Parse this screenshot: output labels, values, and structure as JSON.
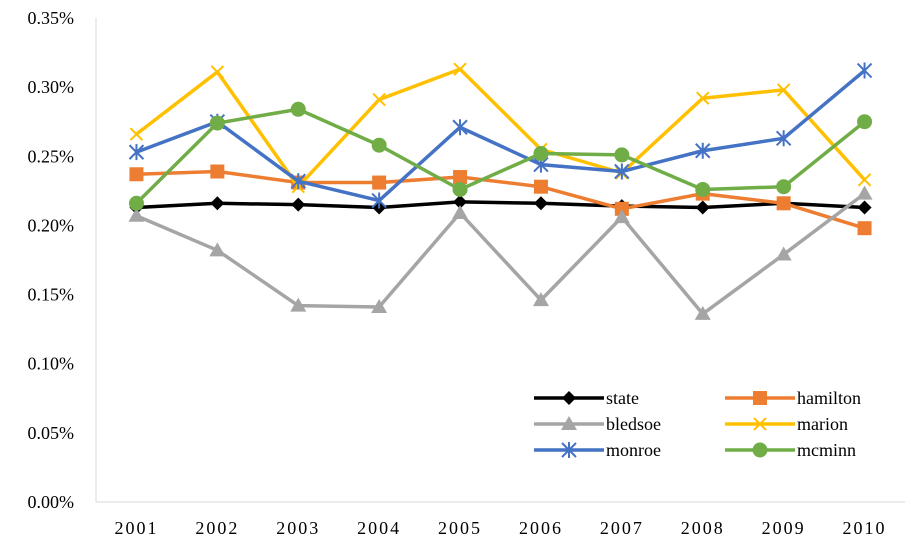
{
  "chart_data": {
    "type": "line",
    "title": "",
    "xlabel": "",
    "ylabel": "",
    "categories": [
      "2001",
      "2002",
      "2003",
      "2004",
      "2005",
      "2006",
      "2007",
      "2008",
      "2009",
      "2010"
    ],
    "ylim": [
      0,
      0.35
    ],
    "y_tick_values": [
      0,
      0.05,
      0.1,
      0.15,
      0.2,
      0.25,
      0.3,
      0.35
    ],
    "y_tick_labels": [
      "0.00%",
      "0.05%",
      "0.10%",
      "0.15%",
      "0.20%",
      "0.25%",
      "0.30%",
      "0.35%"
    ],
    "grid": false,
    "legend_position": "bottom-right",
    "series": [
      {
        "name": "state",
        "color": "#000000",
        "marker": "diamond",
        "values": [
          0.213,
          0.216,
          0.215,
          0.213,
          0.217,
          0.216,
          0.214,
          0.213,
          0.216,
          0.213
        ]
      },
      {
        "name": "hamilton",
        "color": "#ED7D31",
        "marker": "square",
        "values": [
          0.237,
          0.239,
          0.231,
          0.231,
          0.235,
          0.228,
          0.212,
          0.223,
          0.216,
          0.198
        ]
      },
      {
        "name": "bledsoe",
        "color": "#A5A5A5",
        "marker": "triangle",
        "values": [
          0.207,
          0.182,
          0.142,
          0.141,
          0.209,
          0.146,
          0.206,
          0.136,
          0.179,
          0.223
        ]
      },
      {
        "name": "marion",
        "color": "#FFC000",
        "marker": "x",
        "values": [
          0.266,
          0.311,
          0.228,
          0.291,
          0.313,
          0.255,
          0.238,
          0.292,
          0.298,
          0.233
        ]
      },
      {
        "name": "monroe",
        "color": "#4472C4",
        "marker": "star",
        "values": [
          0.253,
          0.275,
          0.232,
          0.218,
          0.271,
          0.244,
          0.239,
          0.254,
          0.263,
          0.312
        ]
      },
      {
        "name": "mcminn",
        "color": "#70AD47",
        "marker": "circle",
        "values": [
          0.216,
          0.274,
          0.284,
          0.258,
          0.226,
          0.252,
          0.251,
          0.226,
          0.228,
          0.275
        ]
      }
    ]
  }
}
